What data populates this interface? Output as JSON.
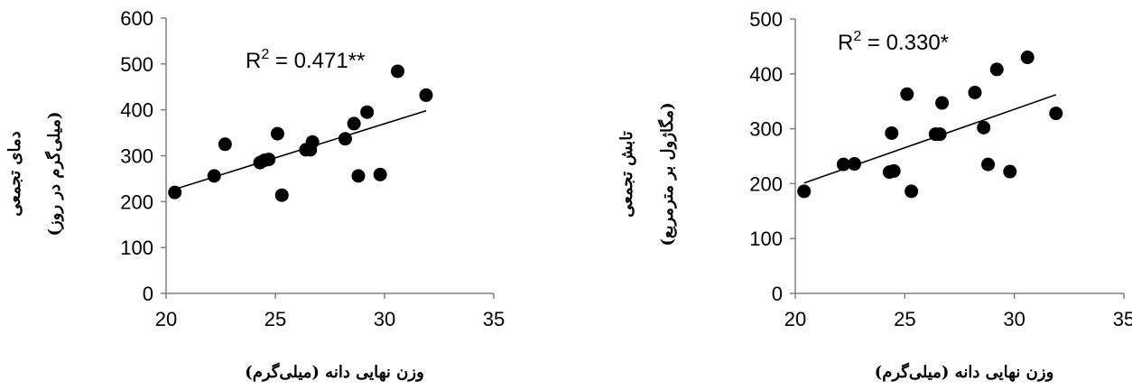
{
  "chart_data": [
    {
      "type": "scatter",
      "xlabel": "وزن نهایی دانه (میلی‌گرم)",
      "ylabel": [
        "دمای تجمعی",
        "(میلی‌گرم در روز)"
      ],
      "xlim": [
        20,
        35
      ],
      "ylim": [
        0,
        600
      ],
      "xticks": [
        "20",
        "25",
        "30",
        "35"
      ],
      "yticks": [
        "0",
        "100",
        "200",
        "300",
        "400",
        "500",
        "600"
      ],
      "annotation": {
        "base": "R",
        "sup": "2",
        "rest": " = 0.471**"
      },
      "trendline": {
        "x": [
          20.4,
          31.9
        ],
        "y": [
          227,
          398
        ]
      },
      "grid": false,
      "points": [
        [
          20.4,
          220
        ],
        [
          22.2,
          256
        ],
        [
          22.7,
          325
        ],
        [
          24.3,
          285
        ],
        [
          24.5,
          290
        ],
        [
          24.7,
          292
        ],
        [
          25.1,
          348
        ],
        [
          25.3,
          214
        ],
        [
          26.4,
          313
        ],
        [
          26.6,
          313
        ],
        [
          26.7,
          330
        ],
        [
          28.2,
          337
        ],
        [
          28.6,
          370
        ],
        [
          28.8,
          256
        ],
        [
          29.2,
          395
        ],
        [
          29.8,
          259
        ],
        [
          30.6,
          484
        ],
        [
          31.9,
          432
        ]
      ]
    },
    {
      "type": "scatter",
      "xlabel": "وزن نهایی دانه (میلی‌گرم)",
      "ylabel": [
        "تابش تجمعی",
        "(مگاژول بر مترمربع)"
      ],
      "xlim": [
        20,
        35
      ],
      "ylim": [
        0,
        500
      ],
      "xticks": [
        "20",
        "25",
        "30",
        "35"
      ],
      "yticks": [
        "0",
        "100",
        "200",
        "300",
        "400",
        "500"
      ],
      "annotation": {
        "base": "R",
        "sup": "2",
        "rest": " = 0.330*"
      },
      "trendline": {
        "x": [
          20.4,
          31.9
        ],
        "y": [
          201,
          362
        ]
      },
      "grid": false,
      "points": [
        [
          20.4,
          186
        ],
        [
          22.2,
          235
        ],
        [
          22.7,
          236
        ],
        [
          24.3,
          221
        ],
        [
          24.4,
          292
        ],
        [
          24.5,
          223
        ],
        [
          25.1,
          363
        ],
        [
          25.3,
          186
        ],
        [
          26.4,
          290
        ],
        [
          26.6,
          290
        ],
        [
          26.7,
          347
        ],
        [
          28.2,
          366
        ],
        [
          28.6,
          302
        ],
        [
          28.8,
          235
        ],
        [
          29.2,
          408
        ],
        [
          29.8,
          222
        ],
        [
          30.6,
          430
        ],
        [
          31.9,
          328
        ]
      ]
    }
  ]
}
